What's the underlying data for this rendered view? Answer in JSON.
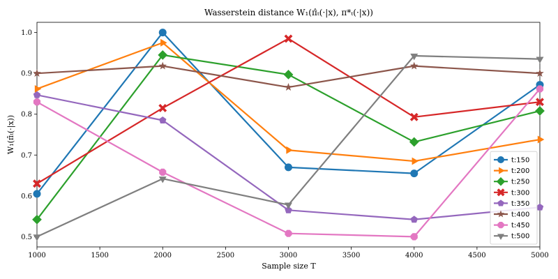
{
  "chart_data": {
    "type": "line",
    "title": "Wasserstein distance W₁(π̂ₜ(·|x), π*ₜ(·|x))",
    "xlabel": "Sample size T",
    "ylabel": "W₁(π̂ₜ(·|x))",
    "x": [
      1000,
      2000,
      3000,
      4000,
      5000
    ],
    "xlim": [
      1000,
      5000
    ],
    "ylim": [
      0.475,
      1.025
    ],
    "xticks": [
      1000,
      1500,
      2000,
      2500,
      3000,
      3500,
      4000,
      4500,
      5000
    ],
    "yticks": [
      0.5,
      0.6,
      0.7,
      0.8,
      0.9,
      1.0
    ],
    "grid": false,
    "legend_position": "lower-right",
    "series": [
      {
        "name": "t:150",
        "color": "#1f77b4",
        "marker": "circle",
        "values": [
          0.605,
          1.0,
          0.67,
          0.655,
          0.872
        ]
      },
      {
        "name": "t:200",
        "color": "#ff7f0e",
        "marker": "triangle-right",
        "values": [
          0.862,
          0.975,
          0.712,
          0.685,
          0.738
        ]
      },
      {
        "name": "t:250",
        "color": "#2ca02c",
        "marker": "diamond",
        "values": [
          0.542,
          0.945,
          0.897,
          0.732,
          0.808
        ]
      },
      {
        "name": "t:300",
        "color": "#d62728",
        "marker": "x",
        "values": [
          0.63,
          0.815,
          0.985,
          0.793,
          0.83
        ]
      },
      {
        "name": "t:350",
        "color": "#9467bd",
        "marker": "pentagon",
        "values": [
          0.847,
          0.785,
          0.565,
          0.542,
          0.572
        ]
      },
      {
        "name": "t:400",
        "color": "#8c564b",
        "marker": "star",
        "values": [
          0.9,
          0.918,
          0.866,
          0.918,
          0.9
        ]
      },
      {
        "name": "t:450",
        "color": "#e377c2",
        "marker": "octagon",
        "values": [
          0.83,
          0.658,
          0.508,
          0.5,
          0.862
        ]
      },
      {
        "name": "t:500",
        "color": "#7f7f7f",
        "marker": "triangle-down",
        "values": [
          0.5,
          0.642,
          0.578,
          0.943,
          0.935
        ]
      }
    ]
  }
}
